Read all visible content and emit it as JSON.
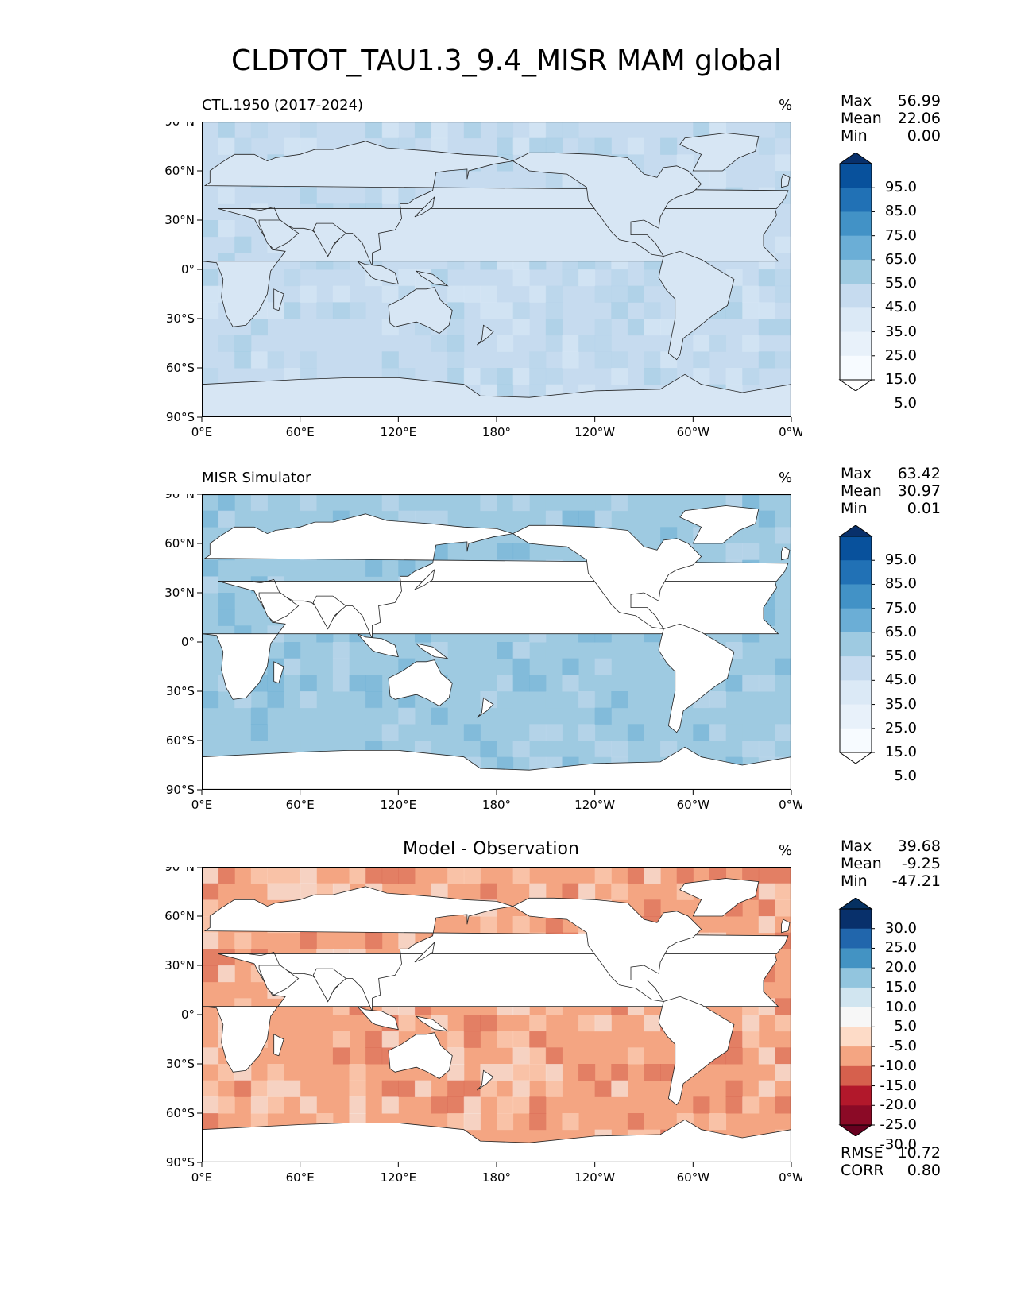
{
  "title": "CLDTOT_TAU1.3_9.4_MISR MAM global",
  "lat_labels": [
    "90°N",
    "60°N",
    "30°N",
    "0°",
    "30°S",
    "60°S",
    "90°S"
  ],
  "lon_labels": [
    "0°E",
    "60°E",
    "120°E",
    "180°",
    "120°W",
    "60°W",
    "0°W"
  ],
  "panels": [
    {
      "title": "CTL.1950 (2017-2024)",
      "units": "%",
      "stats": {
        "max_label": "Max",
        "max": "56.99",
        "mean_label": "Mean",
        "mean": "22.06",
        "min_label": "Min",
        "min": "0.00"
      },
      "colorbar": {
        "labels": [
          "95.0",
          "85.0",
          "75.0",
          "65.0",
          "55.0",
          "45.0",
          "35.0",
          "25.0",
          "15.0",
          "5.0"
        ],
        "colors": [
          "#08306b",
          "#08519c",
          "#2171b5",
          "#4292c6",
          "#6baed6",
          "#9ecae1",
          "#c6dbef",
          "#dbe9f6",
          "#e8f1fa",
          "#f7fbff",
          "#ffffff"
        ]
      },
      "fill": {
        "ocean": "#c6dbef",
        "land": "#d7e6f4",
        "bands": [
          "#9ecae1",
          "#dbe9f6",
          "#b5d3ea"
        ]
      }
    },
    {
      "title": "MISR Simulator",
      "units": "%",
      "stats": {
        "max_label": "Max",
        "max": "63.42",
        "mean_label": "Mean",
        "mean": "30.97",
        "min_label": "Min",
        "min": "0.01"
      },
      "colorbar": {
        "labels": [
          "95.0",
          "85.0",
          "75.0",
          "65.0",
          "55.0",
          "45.0",
          "35.0",
          "25.0",
          "15.0",
          "5.0"
        ],
        "colors": [
          "#08306b",
          "#08519c",
          "#2171b5",
          "#4292c6",
          "#6baed6",
          "#9ecae1",
          "#c6dbef",
          "#dbe9f6",
          "#e8f1fa",
          "#f7fbff",
          "#ffffff"
        ]
      },
      "fill": {
        "ocean": "#9ecae1",
        "land": "#ffffff",
        "bands": [
          "#6baed6",
          "#c6dbef",
          "#9ecae1"
        ]
      }
    },
    {
      "title": "Model - Observation",
      "units": "%",
      "stats": {
        "max_label": "Max",
        "max": "39.68",
        "mean_label": "Mean",
        "mean": "-9.25",
        "min_label": "Min",
        "min": "-47.21"
      },
      "colorbar": {
        "labels": [
          "30.0",
          "25.0",
          "20.0",
          "15.0",
          "10.0",
          "5.0",
          "-5.0",
          "-10.0",
          "-15.0",
          "-20.0",
          "-25.0",
          "-30.0"
        ],
        "colors": [
          "#053061",
          "#08306b",
          "#2166ac",
          "#4393c3",
          "#92c5de",
          "#d1e5f0",
          "#f7f7f7",
          "#fddbc7",
          "#f4a582",
          "#d6604d",
          "#b2182b",
          "#8b0a26",
          "#67001f"
        ]
      },
      "fill": {
        "ocean": "#f4a582",
        "land": "#ffffff",
        "bands": [
          "#d6604d",
          "#fddbc7",
          "#f7f7f7"
        ]
      },
      "metrics": {
        "rmse_label": "RMSE",
        "rmse": "10.72",
        "corr_label": "CORR",
        "corr": "0.80"
      }
    }
  ]
}
